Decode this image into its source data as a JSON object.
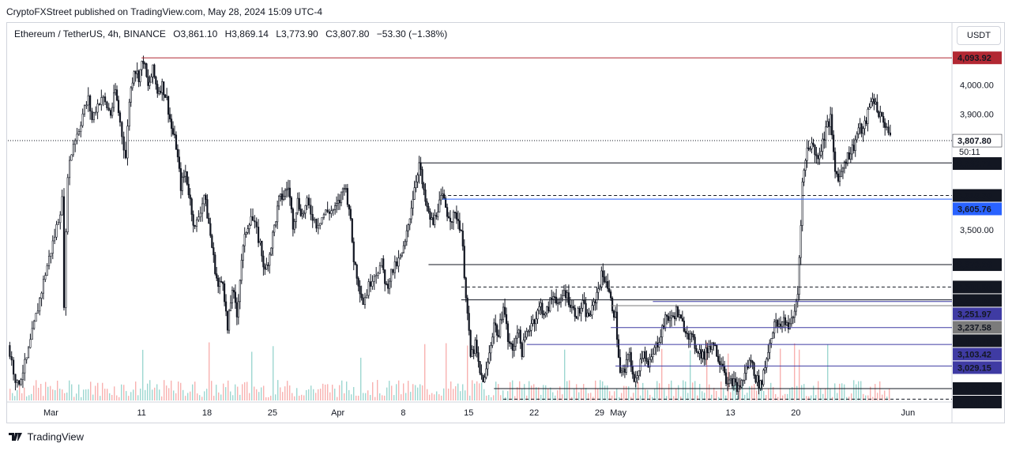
{
  "header": {
    "published_text": "CryptoFXStreet published on TradingView.com, May 28, 2024 15:09 UTC-4"
  },
  "legend": {
    "symbol": "Ethereum / TetherUS, 4h, BINANCE",
    "open": "O3,861.10",
    "high": "H3,869.14",
    "low": "L3,773.90",
    "close": "C3,807.80",
    "change": "−53.30 (−1.38%)"
  },
  "currency_button": "USDT",
  "footer": {
    "brand": "TradingView"
  },
  "chart_data": {
    "type": "candlestick",
    "title": "",
    "xlabel": "",
    "ylabel": "",
    "ylim": [
      2910,
      4130
    ],
    "y_ticks": [
      "3,500.00",
      "3,900.00",
      "4,000.00"
    ],
    "x_ticks": [
      {
        "label": "Mar",
        "t": 4.6
      },
      {
        "label": "11",
        "t": 14.3
      },
      {
        "label": "18",
        "t": 21.3
      },
      {
        "label": "25",
        "t": 28.3
      },
      {
        "label": "Apr",
        "t": 35.3
      },
      {
        "label": "8",
        "t": 42.3
      },
      {
        "label": "15",
        "t": 49.3
      },
      {
        "label": "22",
        "t": 56.3
      },
      {
        "label": "29",
        "t": 63.3
      },
      {
        "label": "May",
        "t": 65.3
      },
      {
        "label": "13",
        "t": 77.3
      },
      {
        "label": "20",
        "t": 84.3
      },
      {
        "label": "Jun",
        "t": 96.3
      }
    ],
    "x_range": [
      0,
      101
    ],
    "path": [
      [
        0,
        3100
      ],
      [
        1,
        2960
      ],
      [
        2,
        3050
      ],
      [
        3,
        3200
      ],
      [
        4,
        3350
      ],
      [
        5,
        3480
      ],
      [
        5.8,
        3600
      ],
      [
        6,
        3250
      ],
      [
        6.4,
        3700
      ],
      [
        7,
        3800
      ],
      [
        7.6,
        3850
      ],
      [
        8,
        3900
      ],
      [
        8.6,
        3950
      ],
      [
        9,
        3880
      ],
      [
        9.4,
        3920
      ],
      [
        10,
        3960
      ],
      [
        11,
        3900
      ],
      [
        11.5,
        3980
      ],
      [
        12,
        3870
      ],
      [
        12.6,
        3750
      ],
      [
        13,
        3950
      ],
      [
        13.5,
        4060
      ],
      [
        14,
        4030
      ],
      [
        14.5,
        4090
      ],
      [
        15,
        3990
      ],
      [
        15.5,
        4050
      ],
      [
        16,
        3980
      ],
      [
        16.5,
        4000
      ],
      [
        17,
        3950
      ],
      [
        17.5,
        3850
      ],
      [
        18,
        3790
      ],
      [
        18.5,
        3650
      ],
      [
        19,
        3700
      ],
      [
        19.5,
        3600
      ],
      [
        20,
        3500
      ],
      [
        21,
        3620
      ],
      [
        21.5,
        3520
      ],
      [
        22,
        3400
      ],
      [
        22.5,
        3300
      ],
      [
        23,
        3330
      ],
      [
        23.5,
        3150
      ],
      [
        24,
        3300
      ],
      [
        24.5,
        3200
      ],
      [
        25,
        3400
      ],
      [
        25.5,
        3500
      ],
      [
        26,
        3550
      ],
      [
        27,
        3450
      ],
      [
        27.5,
        3350
      ],
      [
        28,
        3420
      ],
      [
        28.5,
        3510
      ],
      [
        29,
        3600
      ],
      [
        29.5,
        3620
      ],
      [
        30,
        3650
      ],
      [
        30.5,
        3520
      ],
      [
        31,
        3600
      ],
      [
        31.5,
        3550
      ],
      [
        32,
        3590
      ],
      [
        33,
        3520
      ],
      [
        34,
        3560
      ],
      [
        35,
        3570
      ],
      [
        35.5,
        3600
      ],
      [
        36,
        3660
      ],
      [
        36.5,
        3580
      ],
      [
        37,
        3400
      ],
      [
        37.5,
        3320
      ],
      [
        38,
        3250
      ],
      [
        39,
        3340
      ],
      [
        40,
        3380
      ],
      [
        40.5,
        3300
      ],
      [
        41,
        3350
      ],
      [
        42,
        3400
      ],
      [
        42.5,
        3450
      ],
      [
        43,
        3550
      ],
      [
        43.5,
        3650
      ],
      [
        44,
        3730
      ],
      [
        44.5,
        3620
      ],
      [
        45,
        3550
      ],
      [
        45.5,
        3520
      ],
      [
        46,
        3580
      ],
      [
        46.5,
        3610
      ],
      [
        47,
        3560
      ],
      [
        47.5,
        3540
      ],
      [
        48,
        3550
      ],
      [
        48.5,
        3500
      ],
      [
        49,
        3280
      ],
      [
        49.5,
        3060
      ],
      [
        50,
        3100
      ],
      [
        50.5,
        3000
      ],
      [
        51,
        2980
      ],
      [
        51.5,
        3070
      ],
      [
        52,
        3180
      ],
      [
        52.5,
        3130
      ],
      [
        53,
        3250
      ],
      [
        53.5,
        3120
      ],
      [
        54,
        3080
      ],
      [
        54.5,
        3160
      ],
      [
        55,
        3080
      ],
      [
        55.5,
        3140
      ],
      [
        56,
        3180
      ],
      [
        56.5,
        3200
      ],
      [
        57,
        3240
      ],
      [
        57.5,
        3200
      ],
      [
        58,
        3250
      ],
      [
        58.5,
        3280
      ],
      [
        59,
        3230
      ],
      [
        59.5,
        3290
      ],
      [
        60,
        3260
      ],
      [
        60.5,
        3220
      ],
      [
        61,
        3210
      ],
      [
        61.5,
        3240
      ],
      [
        62,
        3200
      ],
      [
        62.5,
        3220
      ],
      [
        63,
        3280
      ],
      [
        63.5,
        3340
      ],
      [
        64,
        3330
      ],
      [
        64.5,
        3250
      ],
      [
        65,
        3200
      ],
      [
        65.5,
        3000
      ],
      [
        66,
        3010
      ],
      [
        66.5,
        3080
      ],
      [
        67,
        2960
      ],
      [
        67.5,
        3030
      ],
      [
        68,
        3090
      ],
      [
        68.5,
        3020
      ],
      [
        69,
        3070
      ],
      [
        69.5,
        3110
      ],
      [
        70,
        3160
      ],
      [
        70.5,
        3200
      ],
      [
        71,
        3190
      ],
      [
        71.5,
        3220
      ],
      [
        72,
        3180
      ],
      [
        72.5,
        3160
      ],
      [
        73,
        3130
      ],
      [
        73.5,
        3100
      ],
      [
        74,
        3080
      ],
      [
        74.5,
        3060
      ],
      [
        75,
        3100
      ],
      [
        75.5,
        3110
      ],
      [
        76,
        3060
      ],
      [
        76.5,
        3040
      ],
      [
        77,
        2960
      ],
      [
        77.5,
        2980
      ],
      [
        78,
        2950
      ],
      [
        78.5,
        2970
      ],
      [
        79,
        3020
      ],
      [
        79.5,
        3050
      ],
      [
        80,
        2990
      ],
      [
        80.5,
        2960
      ],
      [
        81,
        3030
      ],
      [
        81.5,
        3110
      ],
      [
        82,
        3180
      ],
      [
        82.5,
        3160
      ],
      [
        83,
        3190
      ],
      [
        83.5,
        3170
      ],
      [
        84,
        3190
      ],
      [
        84.5,
        3280
      ],
      [
        85,
        3660
      ],
      [
        85.5,
        3780
      ],
      [
        86,
        3800
      ],
      [
        86.5,
        3750
      ],
      [
        87,
        3780
      ],
      [
        87.5,
        3850
      ],
      [
        88,
        3880
      ],
      [
        88.5,
        3700
      ],
      [
        89,
        3680
      ],
      [
        89.5,
        3740
      ],
      [
        90,
        3760
      ],
      [
        90.5,
        3790
      ],
      [
        91,
        3850
      ],
      [
        91.5,
        3840
      ],
      [
        92,
        3900
      ],
      [
        92.5,
        3960
      ],
      [
        93,
        3920
      ],
      [
        93.5,
        3880
      ],
      [
        94,
        3860
      ],
      [
        94.4,
        3808
      ]
    ],
    "volumes": "low-to-moderate green/red bars along the bottom",
    "current_price": {
      "value": 3807.8,
      "label": "3,807.80",
      "countdown": "50:11"
    },
    "levels": [
      {
        "value": 4093.92,
        "label": "4,093.92",
        "style": "solid",
        "color": "#b22833",
        "badge": "#b22833",
        "from_t": 14.3
      },
      {
        "value": 3730.71,
        "label": "3,730.71",
        "style": "solid",
        "color": "#131722",
        "badge": "#131722",
        "from_t": 44.0
      },
      {
        "value": 3618.3,
        "label": "3,618.30",
        "style": "dashed",
        "color": "#131722",
        "badge": "#131722",
        "from_t": 46.5
      },
      {
        "value": 3605.76,
        "label": "3,605.76",
        "style": "solid",
        "color": "#2962ff",
        "badge": "#2962ff",
        "from_t": 46.5
      },
      {
        "value": 3379.28,
        "label": "3,379.28",
        "style": "solid",
        "color": "#131722",
        "badge": "#131722",
        "from_t": 45.0
      },
      {
        "value": 3301.9,
        "label": "3,301.90",
        "style": "dashed",
        "color": "#131722",
        "badge": "#131722",
        "from_t": 48.5
      },
      {
        "value": 3257.51,
        "label": "3,257.51",
        "style": "solid",
        "color": "#131722",
        "badge": "#131722",
        "from_t": 48.5
      },
      {
        "value": 3251.97,
        "label": "3,251.97",
        "style": "solid",
        "color": "#3f3ba3",
        "badge": "#3f3ba3",
        "from_t": 69.0
      },
      {
        "value": 3237.58,
        "label": "3,237.58",
        "style": "solid",
        "color": "#7b7b7b",
        "badge": "#7b7b7b",
        "from_t": 64.5
      },
      {
        "value": 3161.75,
        "label": "3,161.75",
        "style": "solid",
        "color": "#3f3ba3",
        "badge": "#131722",
        "from_t": 64.5
      },
      {
        "value": 3103.42,
        "label": "3,103.42",
        "style": "solid",
        "color": "#3f3ba3",
        "badge": "#3f3ba3",
        "from_t": 55.5
      },
      {
        "value": 3029.15,
        "label": "3,029.15",
        "style": "solid",
        "color": "#3f3ba3",
        "badge": "#3f3ba3",
        "from_t": 65.0
      },
      {
        "value": 2950.98,
        "label": "2,950.98",
        "style": "solid",
        "color": "#131722",
        "badge": "#131722",
        "from_t": 52.0
      },
      {
        "value": 2914.47,
        "label": "2,914.47",
        "style": "dashed",
        "color": "#131722",
        "badge": "#131722",
        "from_t": 53.0
      }
    ]
  }
}
